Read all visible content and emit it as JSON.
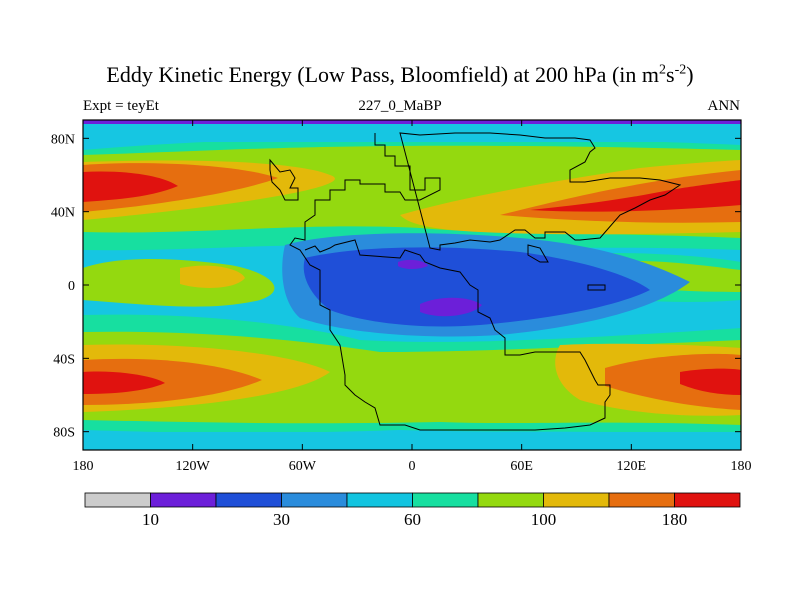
{
  "chart_data": {
    "type": "filled-contour-map",
    "title_prefix": "Eddy Kinetic Energy (Low Pass, Bloomfield) at 200 hPa (in m",
    "title_sup1": "2",
    "title_mid": "s",
    "title_sup2": "-2",
    "title_suffix": ")",
    "left_label": "Expt = teyEt",
    "center_label": "227_0_MaBP",
    "right_label": "ANN",
    "x_ticks": [
      "180",
      "120W",
      "60W",
      "0",
      "60E",
      "120E",
      "180"
    ],
    "y_ticks": [
      "80N",
      "40N",
      "0",
      "40S",
      "80S"
    ],
    "xlim": [
      -180,
      180
    ],
    "ylim": [
      -90,
      90
    ],
    "colorbar": {
      "labels": [
        "10",
        "30",
        "60",
        "100",
        "180"
      ],
      "colors": [
        "#cccccc",
        "#6c1fd9",
        "#1f4fd8",
        "#2a8cdc",
        "#12c4e0",
        "#17dfa0",
        "#94d90f",
        "#e3b90a",
        "#e66e0f",
        "#e0120f"
      ]
    },
    "colors": {
      "background": "#16c6e2",
      "green_band": "#94d90f",
      "yellow_band": "#e3b90a",
      "orange_band": "#e66e0f",
      "red_core": "#e0120f",
      "teal_band": "#17dfa0",
      "light_blue": "#2a8cdc",
      "blue": "#1f4fd8",
      "purple": "#6c1fd9",
      "top_strip": "#6c1fd9"
    }
  }
}
